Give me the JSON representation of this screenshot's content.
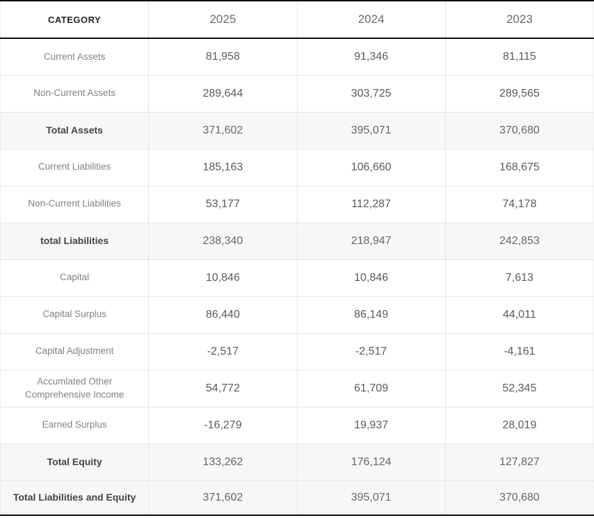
{
  "chart_data": {
    "type": "table",
    "columns": [
      "CATEGORY",
      "2025",
      "2024",
      "2023"
    ],
    "rows": [
      {
        "label": "Current Assets",
        "values": [
          "81,958",
          "91,346",
          "81,115"
        ]
      },
      {
        "label": "Non-Current Assets",
        "values": [
          "289,644",
          "303,725",
          "289,565"
        ]
      },
      {
        "label": "Total Assets",
        "values": [
          "371,602",
          "395,071",
          "370,680"
        ]
      },
      {
        "label": "Current Liabilities",
        "values": [
          "185,163",
          "106,660",
          "168,675"
        ]
      },
      {
        "label": "Non-Current Liabilities",
        "values": [
          "53,177",
          "112,287",
          "74,178"
        ]
      },
      {
        "label": "total Liabilities",
        "values": [
          "238,340",
          "218,947",
          "242,853"
        ]
      },
      {
        "label": "Capital",
        "values": [
          "10,846",
          "10,846",
          "7,613"
        ]
      },
      {
        "label": "Capital Surplus",
        "values": [
          "86,440",
          "86,149",
          "44,011"
        ]
      },
      {
        "label": "Capital Adjustment",
        "values": [
          "-2,517",
          "-2,517",
          "-4,161"
        ]
      },
      {
        "label": "Accumlated Other Comprehensive Income",
        "values": [
          "54,772",
          "61,709",
          "52,345"
        ]
      },
      {
        "label": "Earned Surplus",
        "values": [
          "-16,279",
          "19,937",
          "28,019"
        ]
      },
      {
        "label": "Total Equity",
        "values": [
          "133,262",
          "176,124",
          "127,827"
        ]
      },
      {
        "label": "Total Liabilities and Equity",
        "values": [
          "371,602",
          "395,071",
          "370,680"
        ]
      }
    ],
    "colors": {
      "border_strong": "#0a0a0a",
      "border_light": "#e4e4e4",
      "row_shade": "#f7f7f7",
      "label_text": "#828282",
      "value_text": "#5a5a5a",
      "total_label_text": "#434343"
    }
  }
}
